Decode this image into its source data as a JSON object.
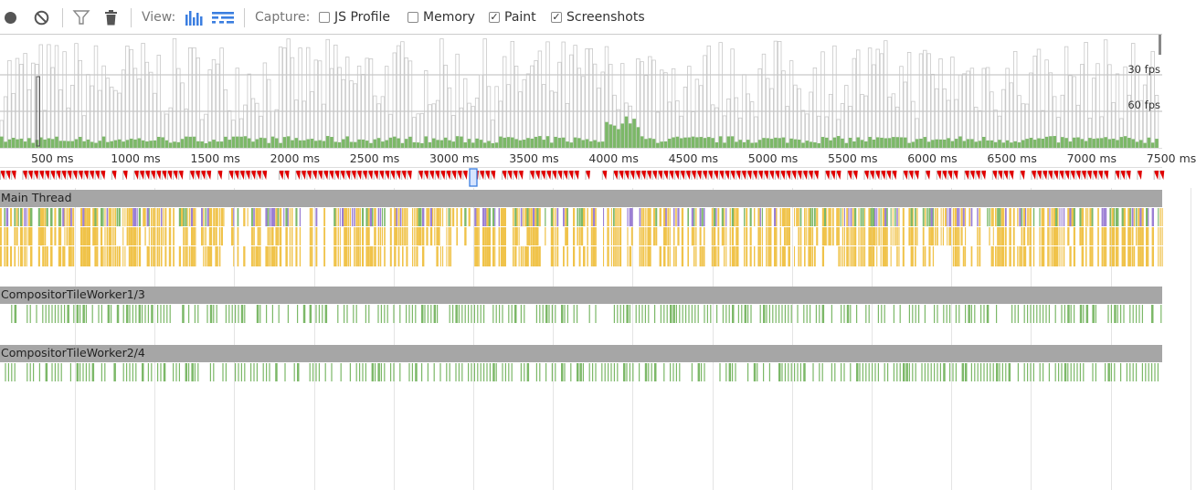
{
  "toolbar": {
    "record_label": "Record",
    "clear_label": "Clear",
    "view_label": "View:",
    "capture_label": "Capture:",
    "checkboxes": [
      {
        "label": "JS Profile",
        "checked": false
      },
      {
        "label": "Memory",
        "checked": false
      },
      {
        "label": "Paint",
        "checked": true
      },
      {
        "label": "Screenshots",
        "checked": true
      }
    ]
  },
  "overview": {
    "fps_30_label": "30 fps",
    "fps_60_label": "60 fps"
  },
  "ruler": {
    "ticks": [
      "500 ms",
      "1000 ms",
      "1500 ms",
      "2000 ms",
      "2500 ms",
      "3000 ms",
      "3500 ms",
      "4000 ms",
      "4500 ms",
      "5000 ms",
      "5500 ms",
      "6000 ms",
      "6500 ms",
      "7000 ms",
      "7500 ms"
    ]
  },
  "tracks": {
    "main_thread": "Main Thread",
    "worker1": "CompositorTileWorker1/3",
    "worker2": "CompositorTileWorker2/4"
  },
  "colors": {
    "frame_bar_stroke": "#c8c8c8",
    "paint_green": "#7cb868",
    "scripting_yellow": "#f0c34a",
    "rendering_purple": "#9b7fd4",
    "dropped_frame_red": "#e00000",
    "track_header": "#a6a6a6",
    "view_icon_blue": "#3b7ee0"
  }
}
